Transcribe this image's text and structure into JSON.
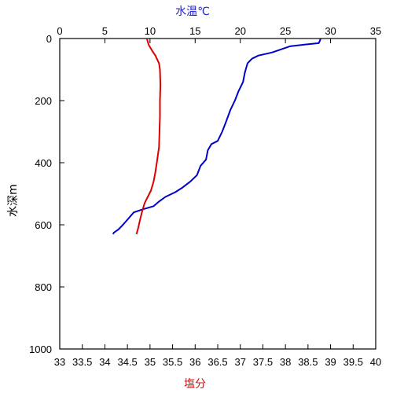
{
  "chart_data": {
    "type": "line",
    "top_axis": {
      "label": "水温℃",
      "range": [
        0,
        35
      ],
      "ticks": [
        "0",
        "5",
        "10",
        "15",
        "20",
        "25",
        "30",
        "35"
      ],
      "color": "#1f1fbf"
    },
    "bottom_axis": {
      "label": "塩分",
      "range": [
        33,
        40
      ],
      "ticks": [
        "33",
        "33.5",
        "34",
        "34.5",
        "35",
        "35.5",
        "36",
        "36.5",
        "37",
        "37.5",
        "38",
        "38.5",
        "39",
        "39.5",
        "40"
      ],
      "color": "#c81414"
    },
    "y_axis": {
      "label": "水深m",
      "range": [
        0,
        1000
      ],
      "inverted": true,
      "ticks": [
        "0",
        "200",
        "400",
        "600",
        "800",
        "1000"
      ]
    },
    "grid": false,
    "series": [
      {
        "quantity": "temperature",
        "axis": "top",
        "color": "#0000cc",
        "points": [
          [
            28.9,
            0
          ],
          [
            28.8,
            8
          ],
          [
            28.7,
            15
          ],
          [
            27.0,
            20
          ],
          [
            25.5,
            25
          ],
          [
            23.5,
            45
          ],
          [
            22.0,
            55
          ],
          [
            21.3,
            65
          ],
          [
            20.8,
            80
          ],
          [
            20.6,
            100
          ],
          [
            20.5,
            110
          ],
          [
            20.3,
            140
          ],
          [
            19.8,
            170
          ],
          [
            19.4,
            200
          ],
          [
            18.9,
            230
          ],
          [
            18.4,
            270
          ],
          [
            18.0,
            300
          ],
          [
            17.5,
            330
          ],
          [
            16.8,
            340
          ],
          [
            16.4,
            360
          ],
          [
            16.2,
            390
          ],
          [
            15.6,
            410
          ],
          [
            15.2,
            440
          ],
          [
            14.5,
            460
          ],
          [
            13.6,
            480
          ],
          [
            12.8,
            495
          ],
          [
            11.7,
            510
          ],
          [
            11.0,
            525
          ],
          [
            10.4,
            540
          ],
          [
            9.2,
            550
          ],
          [
            8.2,
            560
          ],
          [
            7.6,
            580
          ],
          [
            7.0,
            600
          ],
          [
            6.5,
            615
          ],
          [
            6.0,
            625
          ],
          [
            5.9,
            630
          ]
        ]
      },
      {
        "quantity": "salinity",
        "axis": "bottom",
        "color": "#dd0000",
        "points": [
          [
            34.93,
            0
          ],
          [
            34.95,
            10
          ],
          [
            34.97,
            20
          ],
          [
            35.05,
            40
          ],
          [
            35.12,
            55
          ],
          [
            35.2,
            80
          ],
          [
            35.22,
            100
          ],
          [
            35.23,
            150
          ],
          [
            35.22,
            200
          ],
          [
            35.22,
            250
          ],
          [
            35.21,
            300
          ],
          [
            35.2,
            350
          ],
          [
            35.15,
            400
          ],
          [
            35.12,
            430
          ],
          [
            35.08,
            460
          ],
          [
            35.02,
            490
          ],
          [
            34.95,
            510
          ],
          [
            34.88,
            530
          ],
          [
            34.82,
            560
          ],
          [
            34.77,
            590
          ],
          [
            34.74,
            610
          ],
          [
            34.71,
            625
          ],
          [
            34.7,
            630
          ]
        ]
      }
    ]
  }
}
